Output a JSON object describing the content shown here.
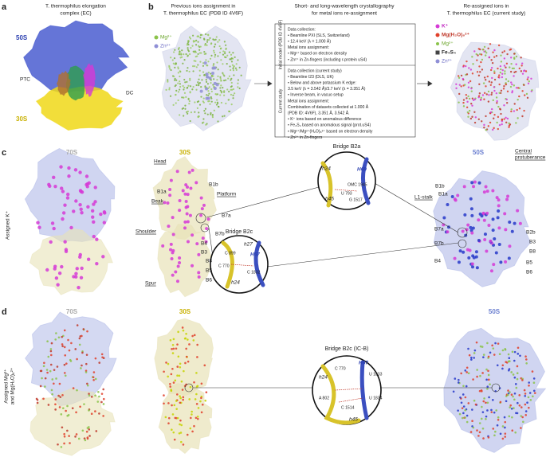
{
  "a": {
    "letter": "a",
    "title_lines": [
      "T. thermophilus elongation",
      "complex (EC)"
    ],
    "labels": [
      "50S",
      "30S",
      "PTC",
      "DC"
    ]
  },
  "b": {
    "letter": "b",
    "left": {
      "title_lines": [
        "Previous ions assignment in",
        "T. thermophilus EC (PDB ID 4V6F)"
      ],
      "legend": [
        "Mg²⁺",
        "Zn²⁺"
      ]
    },
    "middle": {
      "title_lines": [
        "Short- and long-wavelength crystallography",
        "for metal ions re-assignment"
      ],
      "initial": {
        "side_label": "Initial model (PDB ID 4V6F)",
        "lines": [
          "Data collection:",
          "• Beamline PXI (SLS, Switzerland)",
          "• 12.4 keV (λ = 1.000 Å)",
          "Metal ions assignment:",
          "• Mg²⁺ based on electron density",
          "• Zn²⁺ in Zn-fingers (including r-protein uS4)"
        ]
      },
      "current": {
        "side_label": "Current study",
        "lines": [
          "Data collection (current study)",
          "• Beamline I23 (DLS, UK)",
          "• Below and above potassium K edge:",
          "3.5 keV (λ = 3.542 Å)/3.7 keV (λ = 3.351 Å)",
          "• Inverse beam, in vacuo setup",
          "Metal ions assignment:",
          "Combination of datasets collected at 1.000 Å",
          "(PDB ID: 4V6F), 3.351 Å, 3.542 Å.",
          "• K⁺ ions based on anomalous difference",
          "• Fe₄S₄ based on anomalous signal (prot.uS4)",
          "• Mg²⁺/Mg²⁺(H₂O)₆²⁺ based on electron density",
          "• Zn²⁺ in Zn-fingers"
        ]
      }
    },
    "right": {
      "title_lines": [
        "Re-assigned ions in",
        "T. thermophilus EC (current study)"
      ],
      "legend": [
        "K⁺",
        "Mg(H₂O)₆²⁺",
        "Mg²⁺",
        "Fe₄S₄",
        "Zn²⁺"
      ]
    }
  },
  "c": {
    "letter": "c",
    "side_label": "Assigned K⁺",
    "s70": "70S",
    "s30": {
      "title": "30S",
      "labels": [
        "Head",
        "B1a",
        "B1b",
        "Beak",
        "Platform",
        "B7a",
        "B7b",
        "Shoulder",
        "B4",
        "B3",
        "B8",
        "B5",
        "B6",
        "Spur"
      ]
    },
    "b2a": {
      "title": "Bridge B2a",
      "labels": [
        "h24",
        "H69",
        "OMC 1945",
        "U 793",
        "G 1517",
        "h45"
      ]
    },
    "b2c": {
      "title": "Bridge B2c",
      "labels": [
        "h27",
        "H67",
        "C 899",
        "C 770",
        "C 1832",
        "h24"
      ]
    },
    "s50": {
      "title": "50S",
      "cp_lines": [
        "Central",
        "protuberance"
      ],
      "labels": [
        "L1-stalk",
        "B1b",
        "B1a",
        "B7a",
        "B7b",
        "B2b",
        "B3",
        "B8",
        "B5",
        "B6",
        "B4"
      ]
    }
  },
  "d": {
    "letter": "d",
    "side_lines": [
      "Assigned Mg²⁺",
      "and Mg(H₂O)₆²⁺"
    ],
    "s70": "70S",
    "s30": "30S",
    "s50": "50S",
    "b2c": {
      "title": "Bridge B2c (IC-B)",
      "labels": [
        "H67",
        "C 770",
        "h24",
        "U 1833",
        "A 802",
        "C 1514",
        "U 1834",
        "h45"
      ]
    }
  }
}
